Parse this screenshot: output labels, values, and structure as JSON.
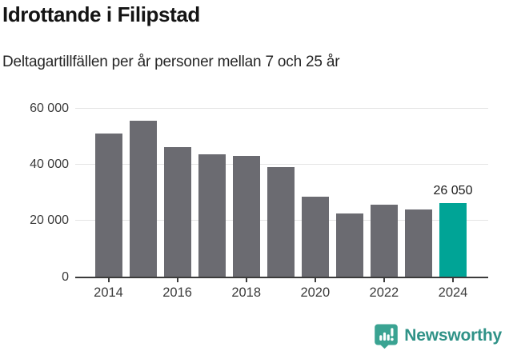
{
  "header": {
    "title": "Idrottande i Filipstad",
    "subtitle": "Deltagartillfällen per år personer mellan 7 och 25 år"
  },
  "chart_data": {
    "type": "bar",
    "title": "Idrottande i Filipstad",
    "subtitle": "Deltagartillfällen per år personer mellan 7 och 25 år",
    "categories": [
      "2014",
      "2015",
      "2016",
      "2017",
      "2018",
      "2019",
      "2020",
      "2021",
      "2022",
      "2023",
      "2024"
    ],
    "values": [
      51000,
      55500,
      46000,
      43500,
      43000,
      39000,
      28500,
      22500,
      25500,
      24000,
      26050
    ],
    "highlight_index": 10,
    "annotation": {
      "index": 10,
      "text": "26 050"
    },
    "ylim": [
      0,
      60000
    ],
    "yticks": [
      0,
      20000,
      40000,
      60000
    ],
    "ytick_labels": [
      "0",
      "20 000",
      "40 000",
      "60 000"
    ],
    "xtick_indices": [
      0,
      2,
      4,
      6,
      8,
      10
    ],
    "xtick_labels": [
      "2014",
      "2016",
      "2018",
      "2020",
      "2022",
      "2024"
    ],
    "grid": "horizontal",
    "legend": "none",
    "colors": {
      "bar": "#6b6b71",
      "highlight": "#00a496",
      "gridline": "#e4e4e4",
      "axis": "#3b3b3b",
      "tick_label": "#3b3b3b"
    }
  },
  "footer": {
    "brand": "Newsworthy",
    "logo": "newsworthy-badge-icon",
    "brand_color": "#2f9287",
    "badge_color": "#3aa392"
  }
}
